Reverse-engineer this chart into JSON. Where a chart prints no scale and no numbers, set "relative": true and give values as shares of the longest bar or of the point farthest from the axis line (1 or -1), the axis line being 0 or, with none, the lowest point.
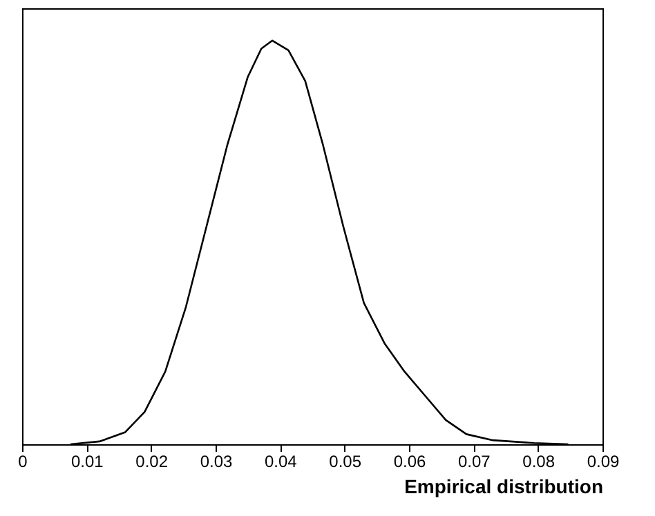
{
  "chart_data": {
    "type": "line",
    "relative": true,
    "xlabel": "Empirical distribution",
    "xlim": [
      0,
      0.09
    ],
    "xticks": [
      0,
      0.01,
      0.02,
      0.03,
      0.04,
      0.05,
      0.06,
      0.07,
      0.08,
      0.09
    ],
    "grid": false,
    "line_style": "solid",
    "marker": "none",
    "series": [
      {
        "color": "#000000",
        "x": [
          0.0075,
          0.012,
          0.016,
          0.019,
          0.0222,
          0.0254,
          0.0286,
          0.0318,
          0.035,
          0.0371,
          0.0388,
          0.0413,
          0.0439,
          0.0466,
          0.0498,
          0.053,
          0.0562,
          0.0593,
          0.0625,
          0.0657,
          0.0689,
          0.073,
          0.0794,
          0.0847
        ],
        "values": [
          0,
          0.007,
          0.03,
          0.08,
          0.18,
          0.34,
          0.54,
          0.74,
          0.91,
          0.98,
          1,
          0.976,
          0.9,
          0.745,
          0.54,
          0.35,
          0.25,
          0.18,
          0.12,
          0.06,
          0.025,
          0.01,
          0.003,
          0
        ]
      }
    ]
  }
}
